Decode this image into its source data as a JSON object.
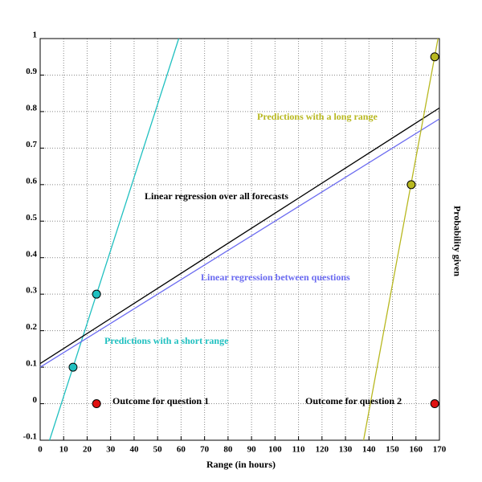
{
  "chart_data": {
    "type": "scatter",
    "xlabel": "Range (in hours)",
    "ylabel": "Probability given",
    "xlim": [
      0,
      170
    ],
    "ylim": [
      -0.1,
      1
    ],
    "xticks": [
      0,
      10,
      20,
      30,
      40,
      50,
      60,
      70,
      80,
      90,
      100,
      110,
      120,
      130,
      140,
      150,
      160,
      170
    ],
    "yticks": [
      -0.1,
      0,
      0.1,
      0.2,
      0.3,
      0.4,
      0.5,
      0.6,
      0.7,
      0.8,
      0.9,
      1
    ],
    "grid": true,
    "series": [
      {
        "name": "Predictions with a short range",
        "color": "#20c0c0",
        "mode": "line",
        "x": [
          4,
          59
        ],
        "values": [
          -0.1,
          1
        ]
      },
      {
        "color": "#20c0c0",
        "mode": "markers",
        "x": [
          14,
          24
        ],
        "values": [
          0.1,
          0.3
        ]
      },
      {
        "name": "Linear regression over all forecasts",
        "color": "#000000",
        "mode": "line",
        "x": [
          0,
          170
        ],
        "values": [
          0.11,
          0.81
        ]
      },
      {
        "name": "Linear regression between questions",
        "color": "#6a6af0",
        "mode": "line",
        "x": [
          0,
          170
        ],
        "values": [
          0.1,
          0.78
        ]
      },
      {
        "name": "Predictions with a long range",
        "color": "#b8b820",
        "mode": "line",
        "x": [
          137.7,
          169.4
        ],
        "values": [
          -0.1,
          1
        ]
      },
      {
        "color": "#b8b820",
        "mode": "markers",
        "x": [
          158,
          168
        ],
        "values": [
          0.6,
          0.95
        ]
      },
      {
        "name": "Outcome for question 1",
        "color": "#e01010",
        "mode": "markers",
        "x": [
          24
        ],
        "values": [
          0
        ]
      },
      {
        "name": "Outcome for question 2",
        "color": "#e01010",
        "mode": "markers",
        "x": [
          168
        ],
        "values": [
          0
        ]
      }
    ]
  }
}
